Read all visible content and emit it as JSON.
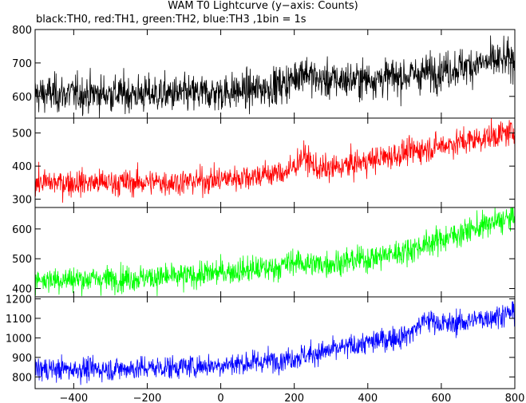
{
  "chart_data": {
    "type": "line",
    "title": "WAM T0 Lightcurve (y−axis: Counts)",
    "subtitle": "black:TH0, red:TH1, green:TH2, blue:TH3 ,1bin = 1s",
    "xlabel": "",
    "ylabel": "",
    "xlim": [
      -505,
      800
    ],
    "x_ticks": [
      -400,
      -200,
      0,
      200,
      400,
      600,
      800
    ],
    "x_tick_labels": [
      "−400",
      "−200",
      "0",
      "200",
      "400",
      "600",
      "800"
    ],
    "bin_seconds": 1,
    "panels": [
      {
        "series": "TH0",
        "color": "#000000",
        "ylim": [
          535,
          800
        ],
        "y_ticks": [
          600,
          700,
          800
        ],
        "y_tick_labels": [
          "600",
          "700",
          "800"
        ],
        "trend": [
          [
            -505,
            607
          ],
          [
            -300,
            608
          ],
          [
            -100,
            606
          ],
          [
            0,
            612
          ],
          [
            100,
            620
          ],
          [
            200,
            645
          ],
          [
            300,
            648
          ],
          [
            400,
            652
          ],
          [
            500,
            660
          ],
          [
            600,
            678
          ],
          [
            700,
            697
          ],
          [
            800,
            712
          ]
        ],
        "bump": [
          225,
          30,
          25
        ],
        "noise": 28
      },
      {
        "series": "TH1",
        "color": "#ff0000",
        "ylim": [
          275,
          545
        ],
        "y_ticks": [
          300,
          400,
          500
        ],
        "y_tick_labels": [
          "300",
          "400",
          "500"
        ],
        "trend": [
          [
            -505,
            350
          ],
          [
            -300,
            350
          ],
          [
            -100,
            352
          ],
          [
            0,
            360
          ],
          [
            100,
            372
          ],
          [
            200,
            385
          ],
          [
            300,
            392
          ],
          [
            400,
            415
          ],
          [
            500,
            440
          ],
          [
            600,
            462
          ],
          [
            700,
            482
          ],
          [
            800,
            505
          ]
        ],
        "bump": [
          225,
          40,
          25
        ],
        "noise": 20
      },
      {
        "series": "TH2",
        "color": "#00ff00",
        "ylim": [
          372,
          672
        ],
        "y_ticks": [
          400,
          500,
          600
        ],
        "y_tick_labels": [
          "400",
          "500",
          "600"
        ],
        "trend": [
          [
            -505,
            430
          ],
          [
            -300,
            433
          ],
          [
            -100,
            440
          ],
          [
            0,
            455
          ],
          [
            100,
            465
          ],
          [
            200,
            475
          ],
          [
            300,
            485
          ],
          [
            400,
            500
          ],
          [
            500,
            525
          ],
          [
            600,
            565
          ],
          [
            700,
            605
          ],
          [
            800,
            640
          ]
        ],
        "bump": [
          200,
          15,
          30
        ],
        "noise": 22
      },
      {
        "series": "TH3",
        "color": "#0000ff",
        "ylim": [
          740,
          1210
        ],
        "y_ticks": [
          800,
          900,
          1000,
          1100,
          1200
        ],
        "y_tick_labels": [
          "800",
          "900",
          "1000",
          "1100",
          "1200"
        ],
        "trend": [
          [
            -505,
            840
          ],
          [
            -300,
            840
          ],
          [
            -100,
            852
          ],
          [
            0,
            862
          ],
          [
            100,
            875
          ],
          [
            200,
            900
          ],
          [
            300,
            935
          ],
          [
            400,
            975
          ],
          [
            500,
            1010
          ],
          [
            600,
            1060
          ],
          [
            700,
            1095
          ],
          [
            800,
            1130
          ]
        ],
        "bump": [
          560,
          50,
          35
        ],
        "noise": 30
      }
    ]
  }
}
